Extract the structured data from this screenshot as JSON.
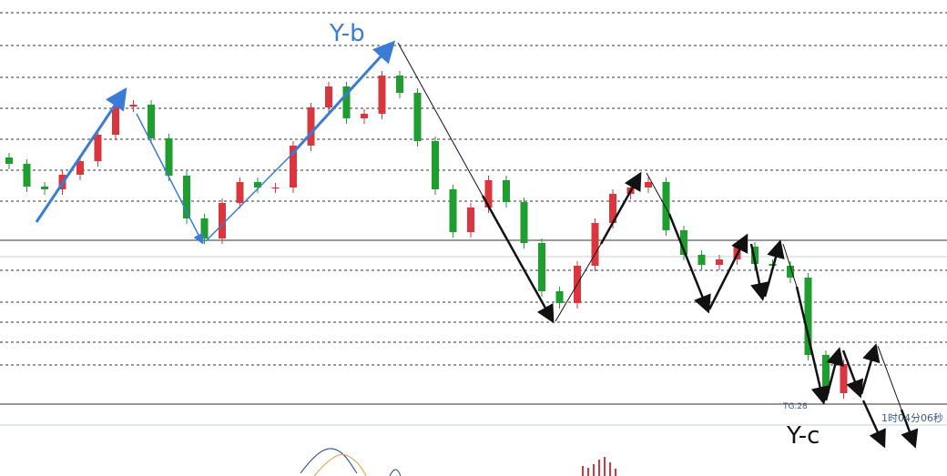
{
  "chart_data": {
    "type": "candlestick",
    "annotations": {
      "wave_b": "Y-b",
      "wave_c": "Y-c",
      "price_tag": "TG.28",
      "timer": "1时04分06秒"
    },
    "ylim": [
      0,
      523
    ],
    "up_color": "#d9363e",
    "down_color": "#1e9e2e",
    "open": [
      350,
      343,
      318,
      315,
      331,
      346,
      375,
      406,
      408,
      371,
      330,
      283,
      261,
      300,
      323,
      317,
      317,
      363,
      405,
      428,
      393,
      398,
      440,
      421,
      368,
      315,
      268,
      295,
      325,
      301,
      256,
      203,
      190,
      231,
      278,
      310,
      317,
      323,
      270,
      243,
      232,
      238,
      252,
      233,
      231,
      218,
      133,
      91
    ],
    "high": [
      355,
      348,
      323,
      336,
      351,
      380,
      411,
      413,
      413,
      376,
      335,
      288,
      305,
      328,
      328,
      322,
      368,
      410,
      433,
      433,
      403,
      445,
      445,
      426,
      373,
      320,
      300,
      330,
      330,
      306,
      261,
      208,
      236,
      283,
      315,
      322,
      328,
      328,
      275,
      248,
      243,
      257,
      257,
      238,
      236,
      223,
      138,
      128
    ],
    "low": [
      337,
      312,
      309,
      309,
      325,
      340,
      369,
      400,
      365,
      324,
      277,
      255,
      255,
      294,
      311,
      311,
      311,
      357,
      399,
      387,
      387,
      392,
      415,
      362,
      309,
      262,
      262,
      289,
      295,
      250,
      197,
      184,
      184,
      225,
      272,
      304,
      311,
      264,
      237,
      226,
      226,
      232,
      227,
      225,
      212,
      127,
      85,
      85
    ],
    "close": [
      343,
      318,
      315,
      331,
      346,
      375,
      406,
      408,
      371,
      330,
      283,
      261,
      300,
      323,
      317,
      317,
      363,
      405,
      428,
      393,
      398,
      440,
      421,
      368,
      315,
      268,
      295,
      325,
      301,
      256,
      203,
      190,
      231,
      278,
      310,
      317,
      323,
      270,
      243,
      232,
      238,
      252,
      233,
      231,
      218,
      133,
      91,
      123
    ]
  }
}
